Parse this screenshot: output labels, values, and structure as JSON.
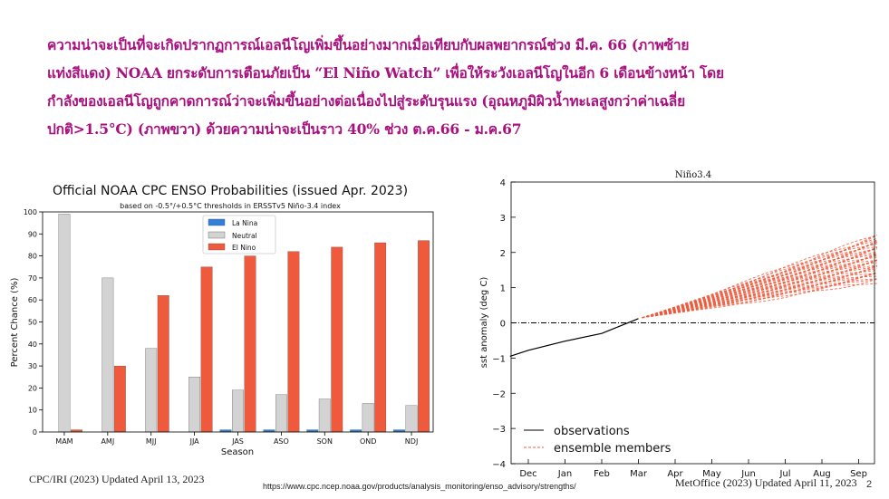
{
  "headline": [
    "ความน่าจะเป็นที่จะเกิดปรากฏการณ์เอลนีโญเพิ่มขึ้นอย่างมากเมื่อเทียบกับผลพยากรณ์ช่วง มี.ค. 66 (ภาพซ้าย",
    "แท่งสีแดง) NOAA ยกระดับการเตือนภัยเป็น “El Niño Watch” เพื่อให้ระวังเอลนีโญในอีก 6 เดือนข้างหน้า โดย",
    "กำลังของเอลนีโญถูกคาดการณ์ว่าจะเพิ่มขึ้นอย่างต่อเนื่องไปสู่ระดับรุนแรง (อุณหภูมิผิวน้ำทะเลสูงกว่าค่าเฉลี่ย",
    "ปกติ>1.5°C) (ภาพขวา) ด้วยความน่าจะเป็นราว 40% ช่วง ต.ค.66 - ม.ค.67"
  ],
  "captions": {
    "left": "CPC/IRI (2023) Updated April 13, 2023",
    "url": "https://www.cpc.ncep.noaa.gov/products/analysis_monitoring/enso_advisory/strengths/",
    "right": "MetOffice (2023) Updated  April 11, 2023",
    "page_number": "2"
  },
  "chart_data": [
    {
      "type": "bar",
      "title": "Official NOAA CPC ENSO Probabilities (issued Apr. 2023)",
      "subtitle": "based on -0.5°/+0.5°C thresholds in ERSSTv5 Niño-3.4 index",
      "xlabel": "Season",
      "ylabel": "Percent Chance (%)",
      "ylim": [
        0,
        100
      ],
      "yticks": [
        0,
        10,
        20,
        30,
        40,
        50,
        60,
        70,
        80,
        90,
        100
      ],
      "grid": false,
      "legend_position": "top-center",
      "categories": [
        "MAM",
        "AMJ",
        "MJJ",
        "JJA",
        "JAS",
        "ASO",
        "SON",
        "OND",
        "NDJ"
      ],
      "series": [
        {
          "name": "La Nina",
          "color": "#2f7fdb",
          "values": [
            0,
            0,
            0,
            0,
            1,
            1,
            1,
            1,
            1
          ]
        },
        {
          "name": "Neutral",
          "color": "#d3d3d3",
          "values": [
            99,
            70,
            38,
            25,
            19,
            17,
            15,
            13,
            12
          ]
        },
        {
          "name": "El Nino",
          "color": "#f05a3c",
          "values": [
            1,
            30,
            62,
            75,
            80,
            82,
            84,
            86,
            87
          ]
        }
      ]
    },
    {
      "type": "line",
      "title": "Niño3.4",
      "xlabel": "",
      "ylabel": "sst anomaly (deg C)",
      "ylim": [
        -4,
        4
      ],
      "yticks": [
        -4,
        -3,
        -2,
        -1,
        0,
        1,
        2,
        3,
        4
      ],
      "x_tick_labels": [
        "Dec",
        "Jan",
        "Feb",
        "Mar",
        "Apr",
        "May",
        "Jun",
        "Jul",
        "Aug",
        "Sep"
      ],
      "grid": false,
      "legend_position": "bottom-left",
      "zero_line": true,
      "series": [
        {
          "name": "observations",
          "color": "#000000",
          "points": [
            [
              -0.5,
              -0.95
            ],
            [
              0,
              -0.78
            ],
            [
              1,
              -0.52
            ],
            [
              2,
              -0.3
            ],
            [
              3,
              0.12
            ]
          ]
        },
        {
          "name": "ensemble members",
          "color": "#f05a3c",
          "members": 40,
          "x_range": [
            3.1,
            9.5
          ],
          "start_value": 0.15,
          "end_range": [
            1.2,
            2.5
          ],
          "end_mean": 1.9
        }
      ]
    }
  ]
}
